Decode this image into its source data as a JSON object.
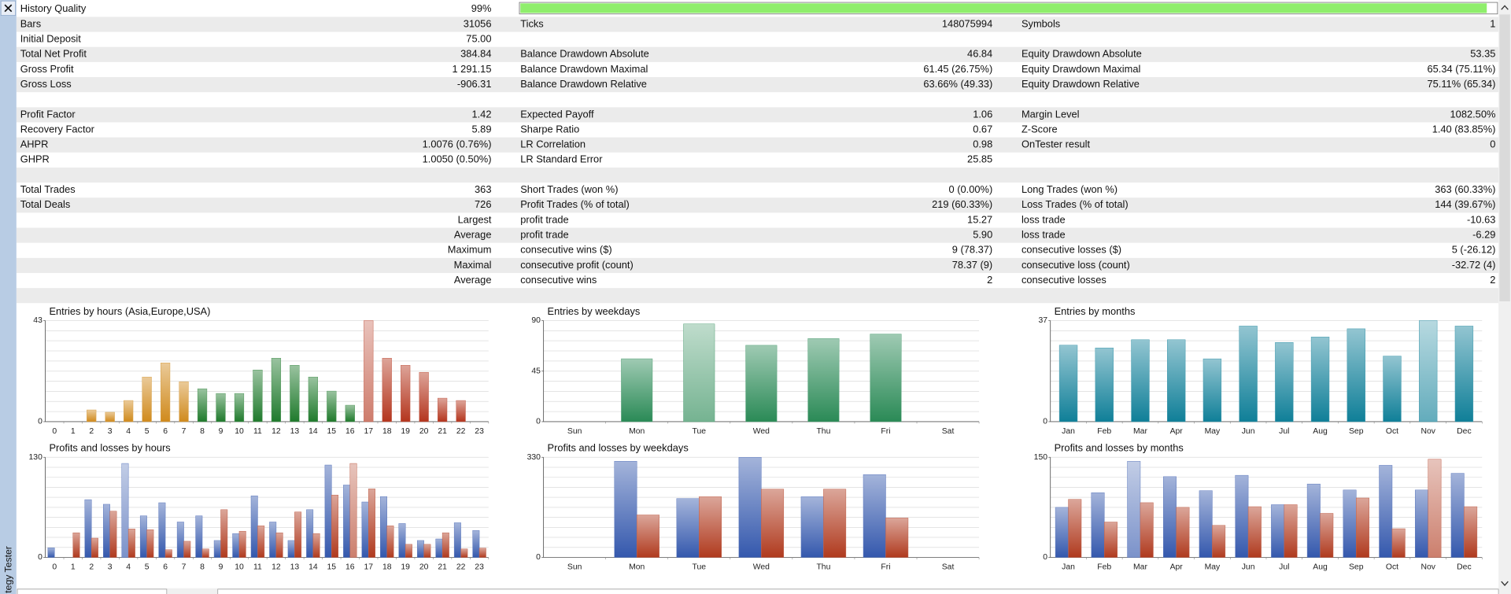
{
  "history_quality": {
    "label": "History Quality",
    "value_label": "99%",
    "value": 99
  },
  "stats": {
    "rows": [
      [
        "Bars",
        "31056",
        "Ticks",
        "148075994",
        "Symbols",
        "1"
      ],
      [
        "Initial Deposit",
        "75.00"
      ],
      [
        "Total Net Profit",
        "384.84",
        "Balance Drawdown Absolute",
        "46.84",
        "Equity Drawdown Absolute",
        "53.35"
      ],
      [
        "Gross Profit",
        "1 291.15",
        "Balance Drawdown Maximal",
        "61.45 (26.75%)",
        "Equity Drawdown Maximal",
        "65.34 (75.11%)"
      ],
      [
        "Gross Loss",
        "-906.31",
        "Balance Drawdown Relative",
        "63.66% (49.33)",
        "Equity Drawdown Relative",
        "75.11% (65.34)"
      ],
      [],
      [
        "Profit Factor",
        "1.42",
        "Expected Payoff",
        "1.06",
        "Margin Level",
        "1082.50%"
      ],
      [
        "Recovery Factor",
        "5.89",
        "Sharpe Ratio",
        "0.67",
        "Z-Score",
        "1.40 (83.85%)"
      ],
      [
        "AHPR",
        "1.0076 (0.76%)",
        "LR Correlation",
        "0.98",
        "OnTester result",
        "0"
      ],
      [
        "GHPR",
        "1.0050 (0.50%)",
        "LR Standard Error",
        "25.85"
      ],
      [],
      [
        "Total Trades",
        "363",
        "Short Trades (won %)",
        "0 (0.00%)",
        "Long Trades (won %)",
        "363 (60.33%)"
      ],
      [
        "Total Deals",
        "726",
        "Profit Trades (% of total)",
        "219 (60.33%)",
        "Loss Trades (% of total)",
        "144 (39.67%)"
      ],
      [
        null,
        "Largest",
        "profit trade",
        "15.27",
        "loss trade",
        "-10.63"
      ],
      [
        null,
        "Average",
        "profit trade",
        "5.90",
        "loss trade",
        "-6.29"
      ],
      [
        null,
        "Maximum",
        "consecutive wins ($)",
        "9 (78.37)",
        "consecutive losses ($)",
        "5 (-26.12)"
      ],
      [
        null,
        "Maximal",
        "consecutive profit (count)",
        "78.37 (9)",
        "consecutive loss (count)",
        "-32.72 (4)"
      ],
      [
        null,
        "Average",
        "consecutive wins",
        "2",
        "consecutive losses",
        "2"
      ],
      []
    ]
  },
  "panel_title": "tegy Tester",
  "chart_data": [
    {
      "type": "bar",
      "title": "Entries by hours (Asia,Europe,USA)",
      "categories": [
        "0",
        "1",
        "2",
        "3",
        "4",
        "5",
        "6",
        "7",
        "8",
        "9",
        "10",
        "11",
        "12",
        "13",
        "14",
        "15",
        "16",
        "17",
        "18",
        "19",
        "20",
        "21",
        "22",
        "23"
      ],
      "values": [
        0,
        0,
        5,
        4,
        9,
        19,
        25,
        17,
        14,
        12,
        12,
        22,
        27,
        24,
        19,
        13,
        7,
        43,
        27,
        24,
        21,
        10,
        9,
        0
      ],
      "colors": [
        "#d08a1c",
        "#d08a1c",
        "#d08a1c",
        "#d08a1c",
        "#d08a1c",
        "#d08a1c",
        "#d08a1c",
        "#d08a1c",
        "#1f7a2c",
        "#1f7a2c",
        "#1f7a2c",
        "#1f7a2c",
        "#1f7a2c",
        "#1f7a2c",
        "#1f7a2c",
        "#1f7a2c",
        "#1f7a2c",
        "#b4351d",
        "#b4351d",
        "#b4351d",
        "#b4351d",
        "#b4351d",
        "#b4351d",
        "#b4351d"
      ],
      "ylim": [
        0,
        43
      ],
      "yticks": [
        0,
        43
      ],
      "grid": true,
      "highlight_max": true
    },
    {
      "type": "bar",
      "title": "Entries by weekdays",
      "categories": [
        "Sun",
        "Mon",
        "Tue",
        "Wed",
        "Thu",
        "Fri",
        "Sat"
      ],
      "values": [
        0,
        56,
        87,
        68,
        74,
        78,
        0
      ],
      "color": "#2a8a56",
      "ylim": [
        0,
        90
      ],
      "yticks": [
        0,
        45,
        90
      ],
      "grid": true,
      "highlight_max": true
    },
    {
      "type": "bar",
      "title": "Entries by months",
      "categories": [
        "Jan",
        "Feb",
        "Mar",
        "Apr",
        "May",
        "Jun",
        "Jul",
        "Aug",
        "Sep",
        "Oct",
        "Nov",
        "Dec"
      ],
      "values": [
        28,
        27,
        30,
        30,
        23,
        35,
        29,
        31,
        34,
        24,
        37,
        35
      ],
      "color": "#0f7f98",
      "ylim": [
        0,
        37
      ],
      "yticks": [
        0,
        37
      ],
      "grid": true,
      "highlight_max": true
    },
    {
      "type": "grouped_bar",
      "title": "Profits and losses by hours",
      "categories": [
        "0",
        "1",
        "2",
        "3",
        "4",
        "5",
        "6",
        "7",
        "8",
        "9",
        "10",
        "11",
        "12",
        "13",
        "14",
        "15",
        "16",
        "17",
        "18",
        "19",
        "20",
        "21",
        "22",
        "23"
      ],
      "series": [
        {
          "color": "#3458ad",
          "values": [
            12.5,
            0,
            75,
            69,
            122,
            54,
            71,
            46,
            54,
            22,
            31,
            80,
            46,
            22,
            62,
            120,
            94,
            72,
            79,
            44,
            22,
            24,
            45,
            35
          ]
        },
        {
          "color": "#b03a1e",
          "values": [
            0,
            32,
            25,
            60,
            37,
            36,
            10,
            21,
            11,
            62,
            34,
            41,
            32,
            59,
            31,
            81,
            122,
            89,
            41,
            17,
            17,
            32,
            11,
            12
          ]
        }
      ],
      "ylim": [
        0,
        130
      ],
      "yticks": [
        0,
        130
      ],
      "grid": true,
      "highlight_max": true
    },
    {
      "type": "grouped_bar",
      "title": "Profits and losses by weekdays",
      "categories": [
        "Sun",
        "Mon",
        "Tue",
        "Wed",
        "Thu",
        "Fri",
        "Sat"
      ],
      "series": [
        {
          "color": "#3458ad",
          "values": [
            0,
            317,
            194,
            330,
            200,
            273,
            0
          ]
        },
        {
          "color": "#b03a1e",
          "values": [
            0,
            140,
            200,
            225,
            225,
            130,
            0
          ]
        }
      ],
      "ylim": [
        0,
        330
      ],
      "yticks": [
        0,
        330
      ],
      "grid": true,
      "highlight_max": false
    },
    {
      "type": "grouped_bar",
      "title": "Profits and losses by months",
      "categories": [
        "Jan",
        "Feb",
        "Mar",
        "Apr",
        "May",
        "Jun",
        "Jul",
        "Aug",
        "Sep",
        "Oct",
        "Nov",
        "Dec"
      ],
      "series": [
        {
          "color": "#3458ad",
          "values": [
            75,
            97,
            144,
            121,
            100,
            123,
            79,
            110,
            101,
            138,
            101,
            126
          ]
        },
        {
          "color": "#b03a1e",
          "values": [
            87,
            53,
            82,
            75,
            48,
            76,
            79,
            66,
            89,
            43,
            147,
            76
          ]
        }
      ],
      "ylim": [
        0,
        150
      ],
      "yticks": [
        0,
        150
      ],
      "grid": true,
      "highlight_max": true
    }
  ]
}
